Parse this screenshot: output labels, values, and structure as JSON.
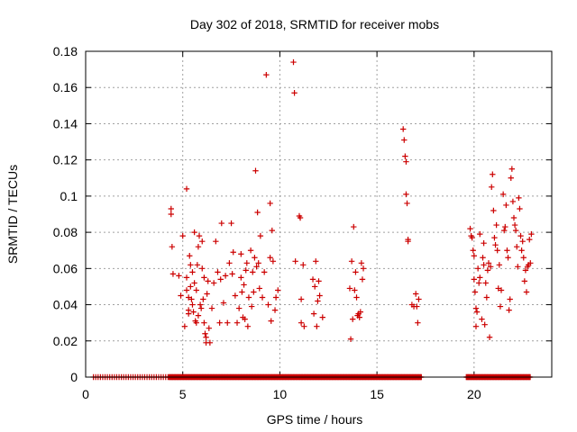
{
  "chart_data": {
    "type": "scatter",
    "title": "Day 302 of 2018, SRMTID for receiver mobs",
    "xlabel": "GPS time / hours",
    "ylabel": "SRMTID / TECUs",
    "xlim": [
      0,
      24
    ],
    "ylim": [
      0,
      0.18
    ],
    "xticks": [
      0,
      5,
      10,
      15,
      20
    ],
    "yticks": [
      0,
      0.02,
      0.04,
      0.06,
      0.08,
      0.1,
      0.12,
      0.14,
      0.16,
      0.18
    ],
    "xtick_labels": [
      "0",
      "5",
      "10",
      "15",
      "20"
    ],
    "ytick_labels": [
      "0",
      "0.02",
      "0.04",
      "0.06",
      "0.08",
      "0.1",
      "0.12",
      "0.14",
      "0.16",
      "0.18"
    ],
    "grid": true,
    "marker": "+",
    "color": "#cc0000",
    "series": [
      {
        "name": "SRMTID",
        "points": [
          [
            4.4,
            0.093
          ],
          [
            4.4,
            0.09
          ],
          [
            4.45,
            0.072
          ],
          [
            4.5,
            0.057
          ],
          [
            4.8,
            0.056
          ],
          [
            4.9,
            0.045
          ],
          [
            5.0,
            0.078
          ],
          [
            5.1,
            0.028
          ],
          [
            5.2,
            0.104
          ],
          [
            5.2,
            0.055
          ],
          [
            5.2,
            0.048
          ],
          [
            5.3,
            0.037
          ],
          [
            5.3,
            0.035
          ],
          [
            5.3,
            0.044
          ],
          [
            5.35,
            0.067
          ],
          [
            5.4,
            0.062
          ],
          [
            5.4,
            0.05
          ],
          [
            5.45,
            0.043
          ],
          [
            5.5,
            0.04
          ],
          [
            5.5,
            0.058
          ],
          [
            5.55,
            0.036
          ],
          [
            5.6,
            0.08
          ],
          [
            5.6,
            0.052
          ],
          [
            5.65,
            0.031
          ],
          [
            5.7,
            0.03
          ],
          [
            5.7,
            0.048
          ],
          [
            5.75,
            0.062
          ],
          [
            5.8,
            0.034
          ],
          [
            5.8,
            0.072
          ],
          [
            5.85,
            0.078
          ],
          [
            5.9,
            0.04
          ],
          [
            5.95,
            0.038
          ],
          [
            6.0,
            0.06
          ],
          [
            6.0,
            0.075
          ],
          [
            6.05,
            0.043
          ],
          [
            6.1,
            0.03
          ],
          [
            6.1,
            0.055
          ],
          [
            6.15,
            0.024
          ],
          [
            6.2,
            0.019
          ],
          [
            6.2,
            0.022
          ],
          [
            6.25,
            0.046
          ],
          [
            6.3,
            0.053
          ],
          [
            6.35,
            0.027
          ],
          [
            6.4,
            0.019
          ],
          [
            6.5,
            0.038
          ],
          [
            6.6,
            0.052
          ],
          [
            6.7,
            0.075
          ],
          [
            6.8,
            0.058
          ],
          [
            6.9,
            0.03
          ],
          [
            6.95,
            0.054
          ],
          [
            7.0,
            0.085
          ],
          [
            7.1,
            0.041
          ],
          [
            7.2,
            0.056
          ],
          [
            7.3,
            0.03
          ],
          [
            7.4,
            0.063
          ],
          [
            7.5,
            0.085
          ],
          [
            7.55,
            0.057
          ],
          [
            7.6,
            0.069
          ],
          [
            7.7,
            0.045
          ],
          [
            7.8,
            0.03
          ],
          [
            7.9,
            0.038
          ],
          [
            8.0,
            0.068
          ],
          [
            8.0,
            0.055
          ],
          [
            8.05,
            0.047
          ],
          [
            8.1,
            0.033
          ],
          [
            8.15,
            0.051
          ],
          [
            8.2,
            0.032
          ],
          [
            8.25,
            0.059
          ],
          [
            8.3,
            0.063
          ],
          [
            8.35,
            0.028
          ],
          [
            8.4,
            0.044
          ],
          [
            8.5,
            0.07
          ],
          [
            8.55,
            0.039
          ],
          [
            8.6,
            0.058
          ],
          [
            8.65,
            0.047
          ],
          [
            8.7,
            0.066
          ],
          [
            8.75,
            0.114
          ],
          [
            8.8,
            0.061
          ],
          [
            8.85,
            0.091
          ],
          [
            8.9,
            0.063
          ],
          [
            8.95,
            0.049
          ],
          [
            9.0,
            0.078
          ],
          [
            9.1,
            0.044
          ],
          [
            9.2,
            0.058
          ],
          [
            9.3,
            0.167
          ],
          [
            9.4,
            0.04
          ],
          [
            9.5,
            0.096
          ],
          [
            9.5,
            0.066
          ],
          [
            9.55,
            0.031
          ],
          [
            9.6,
            0.081
          ],
          [
            9.65,
            0.064
          ],
          [
            9.75,
            0.037
          ],
          [
            9.8,
            0.044
          ],
          [
            9.9,
            0.048
          ],
          [
            10.7,
            0.174
          ],
          [
            10.75,
            0.157
          ],
          [
            10.8,
            0.064
          ],
          [
            11.0,
            0.089
          ],
          [
            11.05,
            0.088
          ],
          [
            11.1,
            0.043
          ],
          [
            11.1,
            0.03
          ],
          [
            11.2,
            0.062
          ],
          [
            11.25,
            0.028
          ],
          [
            11.7,
            0.054
          ],
          [
            11.75,
            0.035
          ],
          [
            11.8,
            0.05
          ],
          [
            11.85,
            0.064
          ],
          [
            11.9,
            0.028
          ],
          [
            11.95,
            0.042
          ],
          [
            12.0,
            0.053
          ],
          [
            12.05,
            0.045
          ],
          [
            12.2,
            0.033
          ],
          [
            13.6,
            0.049
          ],
          [
            13.65,
            0.021
          ],
          [
            13.7,
            0.064
          ],
          [
            13.75,
            0.032
          ],
          [
            13.8,
            0.083
          ],
          [
            13.85,
            0.048
          ],
          [
            13.9,
            0.058
          ],
          [
            13.95,
            0.044
          ],
          [
            14.0,
            0.034
          ],
          [
            14.05,
            0.035
          ],
          [
            14.1,
            0.033
          ],
          [
            14.15,
            0.036
          ],
          [
            14.2,
            0.063
          ],
          [
            14.25,
            0.054
          ],
          [
            14.3,
            0.06
          ],
          [
            16.35,
            0.137
          ],
          [
            16.4,
            0.131
          ],
          [
            16.45,
            0.122
          ],
          [
            16.5,
            0.119
          ],
          [
            16.5,
            0.101
          ],
          [
            16.55,
            0.096
          ],
          [
            16.6,
            0.076
          ],
          [
            16.6,
            0.075
          ],
          [
            16.8,
            0.04
          ],
          [
            16.9,
            0.039
          ],
          [
            17.0,
            0.046
          ],
          [
            17.05,
            0.039
          ],
          [
            17.1,
            0.03
          ],
          [
            17.15,
            0.043
          ],
          [
            19.8,
            0.082
          ],
          [
            19.85,
            0.078
          ],
          [
            19.9,
            0.077
          ],
          [
            19.95,
            0.07
          ],
          [
            20.0,
            0.067
          ],
          [
            20.0,
            0.054
          ],
          [
            20.05,
            0.047
          ],
          [
            20.1,
            0.038
          ],
          [
            20.1,
            0.028
          ],
          [
            20.15,
            0.036
          ],
          [
            20.2,
            0.06
          ],
          [
            20.25,
            0.052
          ],
          [
            20.3,
            0.055
          ],
          [
            20.3,
            0.079
          ],
          [
            20.4,
            0.032
          ],
          [
            20.45,
            0.066
          ],
          [
            20.5,
            0.062
          ],
          [
            20.5,
            0.074
          ],
          [
            20.55,
            0.029
          ],
          [
            20.6,
            0.052
          ],
          [
            20.65,
            0.044
          ],
          [
            20.7,
            0.059
          ],
          [
            20.75,
            0.063
          ],
          [
            20.8,
            0.022
          ],
          [
            20.85,
            0.061
          ],
          [
            20.9,
            0.105
          ],
          [
            20.95,
            0.112
          ],
          [
            21.0,
            0.092
          ],
          [
            21.05,
            0.077
          ],
          [
            21.1,
            0.073
          ],
          [
            21.15,
            0.084
          ],
          [
            21.2,
            0.07
          ],
          [
            21.25,
            0.049
          ],
          [
            21.3,
            0.062
          ],
          [
            21.35,
            0.039
          ],
          [
            21.4,
            0.048
          ],
          [
            21.5,
            0.101
          ],
          [
            21.55,
            0.081
          ],
          [
            21.6,
            0.083
          ],
          [
            21.65,
            0.095
          ],
          [
            21.7,
            0.07
          ],
          [
            21.75,
            0.066
          ],
          [
            21.8,
            0.037
          ],
          [
            21.85,
            0.043
          ],
          [
            21.9,
            0.11
          ],
          [
            21.95,
            0.115
          ],
          [
            22.0,
            0.097
          ],
          [
            22.05,
            0.088
          ],
          [
            22.1,
            0.084
          ],
          [
            22.15,
            0.081
          ],
          [
            22.2,
            0.072
          ],
          [
            22.25,
            0.061
          ],
          [
            22.3,
            0.099
          ],
          [
            22.35,
            0.093
          ],
          [
            22.4,
            0.078
          ],
          [
            22.45,
            0.07
          ],
          [
            22.5,
            0.075
          ],
          [
            22.55,
            0.066
          ],
          [
            22.6,
            0.053
          ],
          [
            22.65,
            0.059
          ],
          [
            22.7,
            0.047
          ],
          [
            22.75,
            0.061
          ],
          [
            22.8,
            0.062
          ],
          [
            22.85,
            0.076
          ],
          [
            22.9,
            0.063
          ],
          [
            22.95,
            0.079
          ]
        ],
        "zero_value_ranges": [
          [
            0.4,
            4.3
          ],
          [
            4.3,
            17.3
          ],
          [
            19.6,
            22.9
          ]
        ]
      }
    ]
  }
}
